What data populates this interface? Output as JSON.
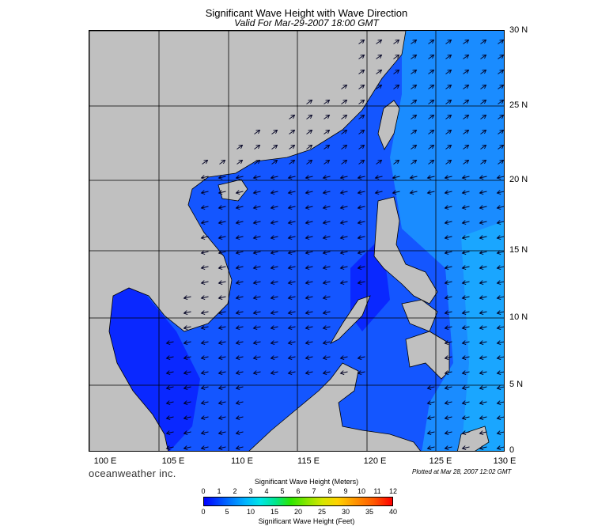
{
  "title": "Significant Wave Height with Wave Direction",
  "subtitle": "Valid For Mar-29-2007 18:00 GMT",
  "lon_labels": [
    "100 E",
    "105 E",
    "110 E",
    "115 E",
    "120 E",
    "125 E",
    "130 E"
  ],
  "lat_labels": [
    "30 N",
    "25 N",
    "20 N",
    "15 N",
    "10 N",
    "5 N",
    "0"
  ],
  "brand": "oceanweather inc.",
  "plotted_text": "Plotted at Mar 28, 2007 12:02 GMT",
  "colorbar": {
    "meters_title": "Significant Wave Height (Meters)",
    "meters_ticks": [
      "0",
      "1",
      "2",
      "3",
      "4",
      "5",
      "6",
      "7",
      "8",
      "9",
      "10",
      "11",
      "12"
    ],
    "feet_title": "Significant Wave Height (Feet)",
    "feet_ticks": [
      "0",
      "5",
      "10",
      "15",
      "20",
      "25",
      "30",
      "35",
      "40"
    ]
  },
  "colors": {
    "land": "#c0c0c0",
    "sea_low": "#0a1eff",
    "sea_mid": "#1456ff",
    "sea_high": "#1aa0ff",
    "grid": "#000000"
  },
  "wave_direction": {
    "north_of_22N": "northeast",
    "south_of_22N": "west-southwest"
  }
}
